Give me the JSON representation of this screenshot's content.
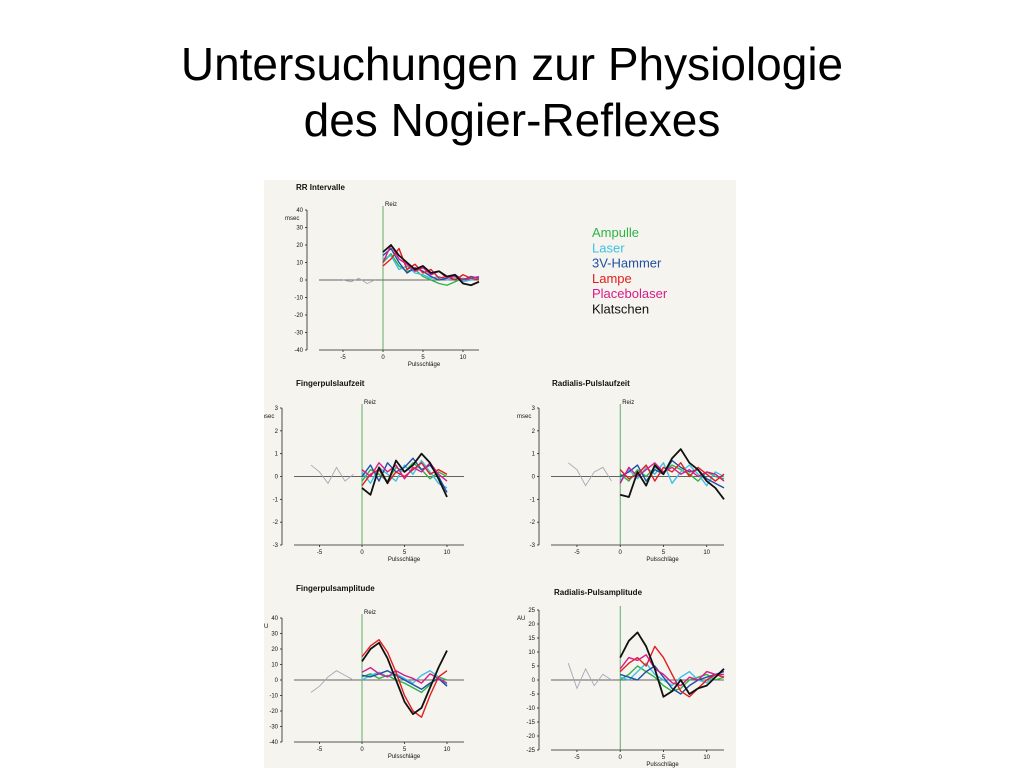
{
  "slide": {
    "title_line1": "Untersuchungen zur Physiologie",
    "title_line2": "des Nogier-Reflexes"
  },
  "legend": [
    {
      "label": "Ampulle",
      "color": "#2db34a"
    },
    {
      "label": "Laser",
      "color": "#3cc0e6"
    },
    {
      "label": "3V-Hammer",
      "color": "#1f4fa8"
    },
    {
      "label": "Lampe",
      "color": "#e21d1d"
    },
    {
      "label": "Placebolaser",
      "color": "#d81b8c"
    },
    {
      "label": "Klatschen",
      "color": "#111111"
    }
  ],
  "chart_data": [
    {
      "type": "line",
      "title": "RR  Intervalle",
      "ylabel": "msec",
      "xlabel": "Pulsschläge",
      "stimulus_label": "Reiz",
      "stimulus_x": 0,
      "xlim": [
        -8,
        12
      ],
      "xticks": [
        -5,
        0,
        5,
        10
      ],
      "ylim": [
        -40,
        40
      ],
      "yticks": [
        -40,
        -30,
        -20,
        -10,
        0,
        10,
        20,
        30,
        40
      ],
      "grid": false,
      "baseline_x": [
        -5,
        -4,
        -3,
        -2,
        -1
      ],
      "baseline": [
        0,
        -1,
        1,
        -2,
        0
      ],
      "x": [
        0,
        1,
        2,
        3,
        4,
        5,
        6,
        7,
        8,
        9,
        10,
        11,
        12
      ],
      "series": [
        {
          "name": "Ampulle",
          "values": [
            10,
            15,
            8,
            5,
            6,
            2,
            0,
            -2,
            -3,
            -1,
            1,
            0,
            1
          ]
        },
        {
          "name": "Laser",
          "values": [
            12,
            14,
            6,
            8,
            4,
            3,
            1,
            2,
            0,
            1,
            -1,
            0,
            1
          ]
        },
        {
          "name": "3V-Hammer",
          "values": [
            14,
            18,
            10,
            4,
            7,
            5,
            2,
            0,
            1,
            3,
            0,
            2,
            1
          ]
        },
        {
          "name": "Lampe",
          "values": [
            8,
            12,
            18,
            6,
            9,
            4,
            6,
            1,
            2,
            0,
            3,
            1,
            0
          ]
        },
        {
          "name": "Placebolaser",
          "values": [
            10,
            20,
            12,
            9,
            5,
            7,
            3,
            5,
            1,
            2,
            0,
            1,
            2
          ]
        },
        {
          "name": "Klatschen",
          "values": [
            16,
            20,
            14,
            10,
            6,
            8,
            4,
            5,
            2,
            3,
            -2,
            -3,
            -1
          ]
        }
      ]
    },
    {
      "type": "line",
      "title": "Fingerpulslaufzeit",
      "ylabel": "msec",
      "xlabel": "Pulsschläge",
      "stimulus_label": "Reiz",
      "stimulus_x": 0,
      "xlim": [
        -8,
        12
      ],
      "xticks": [
        -5,
        0,
        5,
        10
      ],
      "ylim": [
        -3,
        3
      ],
      "yticks": [
        -3,
        -2,
        -1,
        0,
        1,
        2,
        3
      ],
      "grid": false,
      "baseline_x": [
        -6,
        -5,
        -4,
        -3,
        -2,
        -1
      ],
      "baseline": [
        0.5,
        0.2,
        -0.3,
        0.4,
        -0.2,
        0.1
      ],
      "x": [
        0,
        1,
        2,
        3,
        4,
        5,
        6,
        7,
        8,
        9,
        10
      ],
      "series": [
        {
          "name": "Ampulle",
          "values": [
            -0.2,
            0.3,
            0.1,
            -0.2,
            0.4,
            0.2,
            0.6,
            0.3,
            -0.1,
            0.2,
            0.0
          ]
        },
        {
          "name": "Laser",
          "values": [
            0.2,
            -0.3,
            0.4,
            0.1,
            -0.2,
            0.5,
            0.1,
            0.7,
            0.2,
            -0.3,
            -0.5
          ]
        },
        {
          "name": "3V-Hammer",
          "values": [
            0.0,
            0.5,
            -0.2,
            0.6,
            0.2,
            0.4,
            0.8,
            0.3,
            0.5,
            0.0,
            -0.7
          ]
        },
        {
          "name": "Lampe",
          "values": [
            -0.4,
            0.1,
            0.3,
            -0.3,
            0.2,
            0.0,
            0.3,
            0.6,
            0.1,
            0.3,
            0.1
          ]
        },
        {
          "name": "Placebolaser",
          "values": [
            0.3,
            0.0,
            0.6,
            0.2,
            0.5,
            -0.1,
            0.4,
            0.2,
            0.6,
            0.1,
            -0.2
          ]
        },
        {
          "name": "Klatschen",
          "values": [
            -0.5,
            -0.8,
            0.4,
            -0.3,
            0.7,
            0.2,
            0.5,
            1.0,
            0.6,
            -0.1,
            -0.9
          ]
        }
      ]
    },
    {
      "type": "line",
      "title": "Radialis-Pulslaufzeit",
      "ylabel": "msec",
      "xlabel": "Pulsschläge",
      "stimulus_label": "Reiz",
      "stimulus_x": 0,
      "xlim": [
        -8,
        12
      ],
      "xticks": [
        -5,
        0,
        5,
        10
      ],
      "ylim": [
        -3,
        3
      ],
      "yticks": [
        -3,
        -2,
        -1,
        0,
        1,
        2,
        3
      ],
      "grid": false,
      "baseline_x": [
        -6,
        -5,
        -4,
        -3,
        -2,
        -1
      ],
      "baseline": [
        0.6,
        0.3,
        -0.4,
        0.2,
        0.4,
        -0.2
      ],
      "x": [
        0,
        1,
        2,
        3,
        4,
        5,
        6,
        7,
        8,
        9,
        10,
        11,
        12
      ],
      "series": [
        {
          "name": "Ampulle",
          "values": [
            0.1,
            -0.2,
            0.3,
            0.0,
            0.4,
            0.2,
            0.5,
            0.3,
            0.1,
            -0.2,
            0.2,
            0.0,
            -0.1
          ]
        },
        {
          "name": "Laser",
          "values": [
            -0.2,
            0.3,
            -0.1,
            0.4,
            0.1,
            0.6,
            -0.3,
            0.2,
            0.5,
            0.1,
            -0.4,
            0.2,
            0.0
          ]
        },
        {
          "name": "3V-Hammer",
          "values": [
            0.0,
            0.2,
            0.5,
            -0.2,
            0.3,
            0.1,
            0.7,
            0.4,
            0.2,
            0.3,
            -0.1,
            -0.3,
            -0.5
          ]
        },
        {
          "name": "Lampe",
          "values": [
            0.3,
            -0.1,
            0.1,
            0.5,
            -0.2,
            0.4,
            0.2,
            0.6,
            0.0,
            0.4,
            0.1,
            -0.2,
            0.1
          ]
        },
        {
          "name": "Placebolaser",
          "values": [
            -0.3,
            0.4,
            0.0,
            0.3,
            0.6,
            0.2,
            0.4,
            0.1,
            0.3,
            0.0,
            0.2,
            0.1,
            -0.2
          ]
        },
        {
          "name": "Klatschen",
          "values": [
            -0.8,
            -0.9,
            0.2,
            -0.4,
            0.5,
            0.1,
            0.8,
            1.2,
            0.6,
            0.3,
            -0.2,
            -0.5,
            -1.0
          ]
        }
      ]
    },
    {
      "type": "line",
      "title": "Fingerpulsamplitude",
      "ylabel": "AU",
      "xlabel": "Pulsschläge",
      "stimulus_label": "Reiz",
      "stimulus_x": 0,
      "xlim": [
        -8,
        12
      ],
      "xticks": [
        -5,
        0,
        5,
        10
      ],
      "ylim": [
        -40,
        40
      ],
      "yticks": [
        -40,
        -30,
        -20,
        -10,
        0,
        10,
        20,
        30,
        40
      ],
      "grid": false,
      "baseline_x": [
        -6,
        -5,
        -4,
        -3,
        -2,
        -1
      ],
      "baseline": [
        -8,
        -4,
        2,
        6,
        3,
        0
      ],
      "x": [
        0,
        1,
        2,
        3,
        4,
        5,
        6,
        7,
        8,
        9,
        10
      ],
      "series": [
        {
          "name": "Ampulle",
          "values": [
            2,
            4,
            1,
            3,
            0,
            -2,
            -5,
            -8,
            -3,
            2,
            0
          ]
        },
        {
          "name": "Laser",
          "values": [
            0,
            3,
            5,
            2,
            4,
            1,
            -2,
            3,
            6,
            2,
            -3
          ]
        },
        {
          "name": "3V-Hammer",
          "values": [
            3,
            2,
            4,
            6,
            3,
            0,
            -3,
            -6,
            -2,
            1,
            -4
          ]
        },
        {
          "name": "Lampe",
          "values": [
            15,
            22,
            26,
            18,
            5,
            -10,
            -20,
            -24,
            -10,
            2,
            6
          ]
        },
        {
          "name": "Placebolaser",
          "values": [
            5,
            8,
            4,
            2,
            6,
            3,
            1,
            -2,
            4,
            1,
            -2
          ]
        },
        {
          "name": "Klatschen",
          "values": [
            12,
            20,
            24,
            14,
            0,
            -14,
            -22,
            -18,
            -5,
            8,
            19
          ]
        }
      ]
    },
    {
      "type": "line",
      "title": "Radialis-Pulsamplitude",
      "ylabel": "AU",
      "xlabel": "Pulsschläge",
      "stimulus_label": "",
      "stimulus_x": 0,
      "xlim": [
        -8,
        12
      ],
      "xticks": [
        -5,
        0,
        5,
        10
      ],
      "ylim": [
        -25,
        25
      ],
      "yticks": [
        -25,
        -20,
        -15,
        -10,
        -5,
        0,
        5,
        10,
        15,
        20,
        25
      ],
      "grid": false,
      "baseline_x": [
        -6,
        -5,
        -4,
        -3,
        -2,
        -1
      ],
      "baseline": [
        6,
        -3,
        4,
        -2,
        2,
        0
      ],
      "x": [
        0,
        1,
        2,
        3,
        4,
        5,
        6,
        7,
        8,
        9,
        10,
        11,
        12
      ],
      "series": [
        {
          "name": "Ampulle",
          "values": [
            0,
            2,
            5,
            3,
            1,
            -2,
            -4,
            -3,
            0,
            1,
            2,
            0,
            1
          ]
        },
        {
          "name": "Laser",
          "values": [
            1,
            0,
            3,
            6,
            2,
            0,
            -2,
            1,
            3,
            0,
            -1,
            2,
            1
          ]
        },
        {
          "name": "3V-Hammer",
          "values": [
            2,
            1,
            0,
            3,
            5,
            1,
            -3,
            -5,
            -2,
            0,
            1,
            2,
            3
          ]
        },
        {
          "name": "Lampe",
          "values": [
            3,
            6,
            8,
            5,
            12,
            8,
            2,
            -4,
            -6,
            -3,
            0,
            2,
            1
          ]
        },
        {
          "name": "Placebolaser",
          "values": [
            4,
            8,
            7,
            9,
            4,
            2,
            -1,
            -2,
            1,
            0,
            3,
            2,
            2
          ]
        },
        {
          "name": "Klatschen",
          "values": [
            8,
            14,
            17,
            12,
            4,
            -6,
            -4,
            0,
            -5,
            -3,
            -2,
            1,
            4
          ]
        }
      ]
    }
  ]
}
